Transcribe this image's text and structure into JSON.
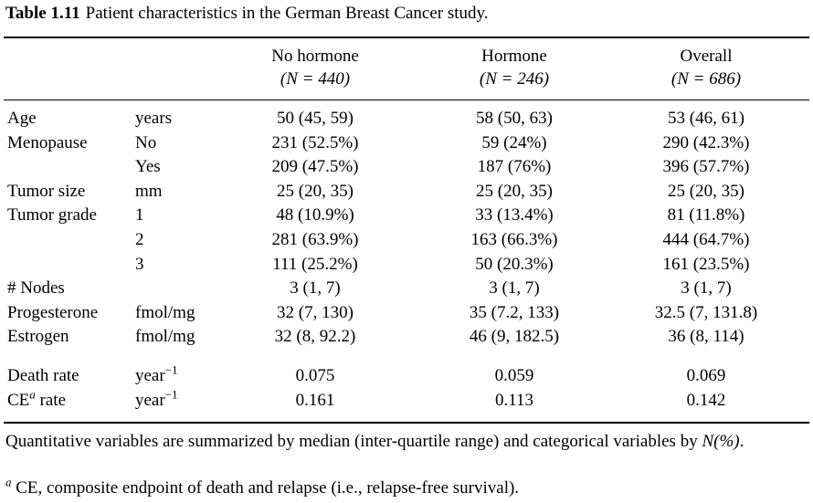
{
  "caption": {
    "number": "Table 1.11",
    "text": "Patient characteristics in the German Breast Cancer study."
  },
  "columns": [
    {
      "name": "No hormone",
      "n_label": "(N = 440)"
    },
    {
      "name": "Hormone",
      "n_label": "(N = 246)"
    },
    {
      "name": "Overall",
      "n_label": "(N = 686)"
    }
  ],
  "rows": [
    {
      "label": "Age",
      "unit": "years",
      "values": [
        "50 (45, 59)",
        "58 (50, 63)",
        "53 (46, 61)"
      ]
    },
    {
      "label": "Menopause",
      "unit": "No",
      "values": [
        "231 (52.5%)",
        "59 (24%)",
        "290 (42.3%)"
      ]
    },
    {
      "label": "",
      "unit": "Yes",
      "values": [
        "209 (47.5%)",
        "187 (76%)",
        "396 (57.7%)"
      ]
    },
    {
      "label": "Tumor size",
      "unit": "mm",
      "values": [
        "25 (20, 35)",
        "25 (20, 35)",
        "25 (20, 35)"
      ]
    },
    {
      "label": "Tumor grade",
      "unit": "1",
      "values": [
        "48 (10.9%)",
        "33 (13.4%)",
        "81 (11.8%)"
      ]
    },
    {
      "label": "",
      "unit": "2",
      "values": [
        "281 (63.9%)",
        "163 (66.3%)",
        "444 (64.7%)"
      ]
    },
    {
      "label": "",
      "unit": "3",
      "values": [
        "111 (25.2%)",
        "50 (20.3%)",
        "161 (23.5%)"
      ]
    },
    {
      "label": "# Nodes",
      "unit": "",
      "values": [
        "3 (1, 7)",
        "3 (1, 7)",
        "3 (1, 7)"
      ]
    },
    {
      "label": "Progesterone",
      "unit": "fmol/mg",
      "values": [
        "32 (7, 130)",
        "35 (7.2, 133)",
        "32.5 (7, 131.8)"
      ]
    },
    {
      "label": "Estrogen",
      "unit": "fmol/mg",
      "values": [
        "32 (8, 92.2)",
        "46 (9, 182.5)",
        "36 (8, 114)"
      ]
    }
  ],
  "rate_rows": [
    {
      "label": "Death rate",
      "label_sup": "",
      "label_tail": "",
      "unit": "year",
      "unit_sup": "−1",
      "values": [
        "0.075",
        "0.059",
        "0.069"
      ]
    },
    {
      "label": "CE",
      "label_sup": "a",
      "label_tail": " rate",
      "unit": "year",
      "unit_sup": "−1",
      "values": [
        "0.161",
        "0.113",
        "0.142"
      ]
    }
  ],
  "notes": {
    "summary_text": "Quantitative variables are summarized by median (inter-quartile range) and categorical variables by ",
    "summary_tail": "N(%)",
    "summary_end": ".",
    "footnote_mark": "a",
    "footnote_text": " CE, composite endpoint of death and relapse (i.e., relapse-free survival)."
  }
}
